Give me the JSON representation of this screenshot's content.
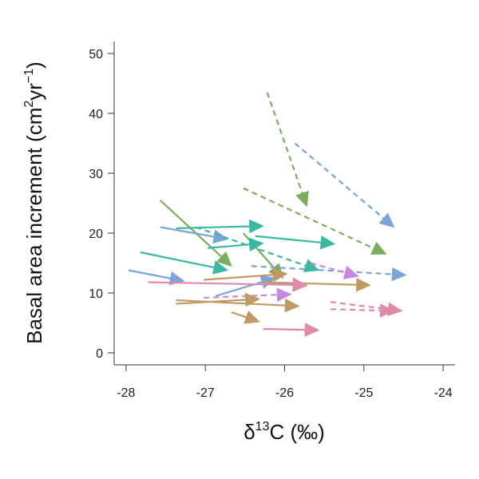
{
  "chart_data": {
    "type": "line",
    "chart_subtype": "arrow plot (paired start to end points)",
    "title": "",
    "xlabel": "δ13C (‰)",
    "xlabel_parts": {
      "symbol": "δ",
      "superscript": "13",
      "rest": "C (‰)"
    },
    "ylabel": "Basal area increment (cm2yr−1)",
    "ylabel_parts": {
      "main": "Basal area increment (cm",
      "sup1": "2",
      "mid": "yr",
      "sup2": "−1",
      "end": ")"
    },
    "xlim": [
      -28.15,
      -23.85
    ],
    "ylim": [
      -2,
      52
    ],
    "xticks": [
      -28,
      -27,
      -26,
      -25,
      -24
    ],
    "yticks": [
      0,
      10,
      20,
      30,
      40,
      50
    ],
    "grid": false,
    "legend": "none",
    "colors": {
      "green": "#7aae5a",
      "blue": "#7aa5d6",
      "teal": "#3bb8a2",
      "purple": "#c589e0",
      "tan": "#c09a62",
      "pink": "#e08aa8"
    },
    "series": [
      {
        "color": "green",
        "dashed": true,
        "x": [
          -26.22,
          -25.72
        ],
        "y": [
          43.5,
          24.5
        ]
      },
      {
        "color": "green",
        "dashed": true,
        "x": [
          -26.52,
          -24.72
        ],
        "y": [
          27.5,
          16.5
        ]
      },
      {
        "color": "green",
        "dashed": false,
        "x": [
          -27.57,
          -26.67
        ],
        "y": [
          25.5,
          14.5
        ]
      },
      {
        "color": "green",
        "dashed": false,
        "x": [
          -26.52,
          -26.02
        ],
        "y": [
          20.0,
          12.5
        ]
      },
      {
        "color": "blue",
        "dashed": true,
        "x": [
          -25.87,
          -24.62
        ],
        "y": [
          35.0,
          21.0
        ]
      },
      {
        "color": "blue",
        "dashed": false,
        "x": [
          -27.57,
          -26.72
        ],
        "y": [
          21.0,
          19.0
        ]
      },
      {
        "color": "blue",
        "dashed": false,
        "x": [
          -27.97,
          -27.27
        ],
        "y": [
          13.8,
          12.0
        ]
      },
      {
        "color": "blue",
        "dashed": false,
        "x": [
          -26.87,
          -26.12
        ],
        "y": [
          9.5,
          12.5
        ]
      },
      {
        "color": "blue",
        "dashed": true,
        "x": [
          -26.42,
          -24.47
        ],
        "y": [
          14.5,
          13.0
        ]
      },
      {
        "color": "teal",
        "dashed": false,
        "x": [
          -27.37,
          -26.27
        ],
        "y": [
          20.8,
          21.2
        ]
      },
      {
        "color": "teal",
        "dashed": false,
        "x": [
          -26.97,
          -26.27
        ],
        "y": [
          17.5,
          18.3
        ]
      },
      {
        "color": "teal",
        "dashed": false,
        "x": [
          -27.82,
          -26.72
        ],
        "y": [
          16.8,
          13.8
        ]
      },
      {
        "color": "teal",
        "dashed": false,
        "x": [
          -26.37,
          -25.37
        ],
        "y": [
          19.5,
          18.2
        ]
      },
      {
        "color": "teal",
        "dashed": true,
        "x": [
          -27.12,
          -25.57
        ],
        "y": [
          21.0,
          13.8
        ]
      },
      {
        "color": "purple",
        "dashed": false,
        "x": [
          -26.27,
          -25.72
        ],
        "y": [
          11.8,
          11.2
        ]
      },
      {
        "color": "purple",
        "dashed": true,
        "x": [
          -25.67,
          -25.07
        ],
        "y": [
          15.0,
          12.8
        ]
      },
      {
        "color": "purple",
        "dashed": true,
        "x": [
          -27.02,
          -25.92
        ],
        "y": [
          9.2,
          9.8
        ]
      },
      {
        "color": "tan",
        "dashed": false,
        "x": [
          -27.02,
          -25.97
        ],
        "y": [
          12.2,
          13.2
        ]
      },
      {
        "color": "tan",
        "dashed": false,
        "x": [
          -26.27,
          -24.92
        ],
        "y": [
          11.8,
          11.3
        ]
      },
      {
        "color": "tan",
        "dashed": false,
        "x": [
          -27.37,
          -26.32
        ],
        "y": [
          8.2,
          9.0
        ]
      },
      {
        "color": "tan",
        "dashed": false,
        "x": [
          -27.37,
          -25.82
        ],
        "y": [
          8.8,
          7.8
        ]
      },
      {
        "color": "tan",
        "dashed": false,
        "x": [
          -26.67,
          -26.32
        ],
        "y": [
          6.8,
          5.2
        ]
      },
      {
        "color": "pink",
        "dashed": false,
        "x": [
          -27.72,
          -25.72
        ],
        "y": [
          11.8,
          11.3
        ]
      },
      {
        "color": "pink",
        "dashed": true,
        "x": [
          -25.42,
          -24.52
        ],
        "y": [
          8.5,
          7.0
        ]
      },
      {
        "color": "pink",
        "dashed": true,
        "x": [
          -25.42,
          -24.62
        ],
        "y": [
          7.3,
          7.0
        ]
      },
      {
        "color": "pink",
        "dashed": false,
        "x": [
          -26.27,
          -25.57
        ],
        "y": [
          4.0,
          3.8
        ]
      }
    ]
  }
}
